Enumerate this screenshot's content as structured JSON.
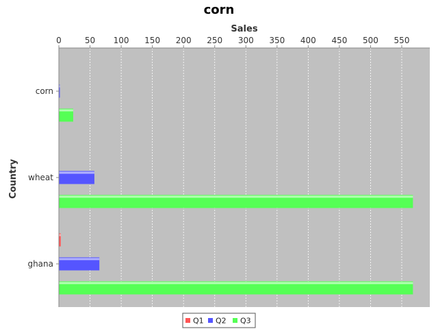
{
  "chart_data": {
    "type": "bar",
    "orientation": "horizontal",
    "title": "corn",
    "xlabel": "Sales",
    "ylabel": "Country",
    "categories": [
      "corn",
      "wheat",
      "ghana"
    ],
    "series": [
      {
        "name": "Q1",
        "values": [
          0,
          0,
          3
        ]
      },
      {
        "name": "Q2",
        "values": [
          1,
          57,
          65
        ]
      },
      {
        "name": "Q3",
        "values": [
          23,
          568,
          568
        ]
      }
    ],
    "xlim": [
      0,
      595
    ],
    "xticks": [
      0,
      50,
      100,
      150,
      200,
      250,
      300,
      350,
      400,
      450,
      500,
      550
    ],
    "value_axis_position": "top",
    "legend_position": "bottom",
    "grid": true,
    "colors": {
      "Q1": "#ff5555",
      "Q2": "#5555ff",
      "Q3": "#55ff55",
      "plot_background": "#c0c0c0"
    }
  }
}
